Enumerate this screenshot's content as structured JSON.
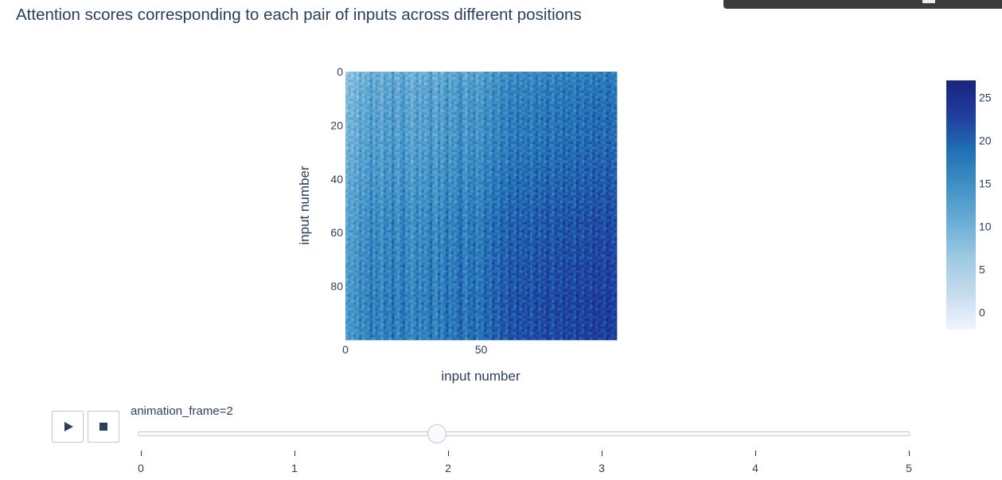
{
  "title": "Attention scores corresponding to each pair of inputs across different positions",
  "chart_data": {
    "type": "heatmap",
    "title": "Attention scores corresponding to each pair of inputs across different positions",
    "xlabel": "input number",
    "ylabel": "input number",
    "grid_size": 100,
    "xlim": [
      0,
      99
    ],
    "ylim": [
      99,
      0
    ],
    "x_ticks": [
      0,
      50
    ],
    "y_ticks": [
      0,
      20,
      40,
      60,
      80
    ],
    "zmin": -2,
    "zmax": 27,
    "colorscale": [
      "#f0f5ff",
      "#c6dbef",
      "#9ecae1",
      "#6baed6",
      "#4292c6",
      "#2171b5",
      "#1f3e9e",
      "#1a237e"
    ],
    "colorbar": {
      "ticks": [
        0,
        5,
        10,
        15,
        20,
        25
      ]
    },
    "frame_shown": 2,
    "column_levels": [
      6,
      9,
      7,
      10,
      8,
      13,
      9,
      12,
      11,
      16,
      10,
      14,
      12,
      9,
      15,
      13,
      11,
      17,
      12,
      10,
      14,
      16,
      11,
      13,
      9,
      12,
      15,
      10,
      14,
      11,
      13,
      17,
      12,
      10,
      16,
      11,
      14,
      18,
      12,
      15,
      13,
      16,
      19,
      14,
      12,
      17,
      15,
      18,
      13,
      16,
      14,
      19,
      17,
      15,
      20,
      18,
      16,
      21,
      19,
      17,
      22,
      20,
      18,
      23,
      19,
      21,
      20,
      22,
      18,
      21,
      23,
      19,
      22,
      20,
      24,
      21,
      19,
      23,
      22,
      20,
      24,
      21,
      23,
      22,
      20,
      25,
      22,
      21,
      24,
      23,
      21,
      25,
      22,
      24,
      23,
      21,
      25,
      24,
      22,
      23
    ],
    "row_levels": [
      7,
      9,
      8,
      10,
      9,
      11,
      10,
      12,
      11,
      10,
      12,
      11,
      13,
      12,
      11,
      13,
      12,
      14,
      13,
      12,
      13,
      14,
      13,
      12,
      14,
      13,
      15,
      14,
      13,
      15,
      14,
      16,
      15,
      14,
      16,
      15,
      17,
      16,
      15,
      17,
      16,
      18,
      17,
      16,
      18,
      17,
      19,
      18,
      17,
      19,
      18,
      20,
      19,
      18,
      20,
      19,
      21,
      20,
      19,
      21,
      20,
      19,
      21,
      20,
      22,
      21,
      20,
      22,
      21,
      20,
      22,
      21,
      23,
      22,
      21,
      23,
      22,
      21,
      23,
      22,
      21,
      23,
      22,
      24,
      23,
      22,
      24,
      23,
      22,
      24,
      23,
      22,
      24,
      23,
      22,
      24,
      23,
      22,
      24,
      23
    ]
  },
  "controls": {
    "play_icon": "play-icon",
    "stop_icon": "stop-icon",
    "slider_label": "animation_frame=2",
    "slider_steps": [
      "0",
      "1",
      "2",
      "3",
      "4",
      "5"
    ],
    "active_step": 2
  }
}
